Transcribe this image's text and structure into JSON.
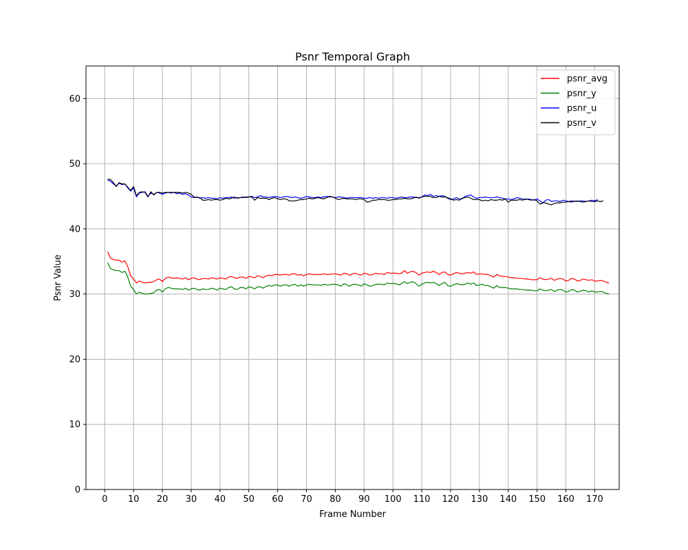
{
  "chart_data": {
    "type": "line",
    "title": "Psnr Temporal Graph",
    "xlabel": "Frame Number",
    "ylabel": "Psnr Value",
    "xlim": [
      -6.5,
      178.5
    ],
    "ylim": [
      0,
      65
    ],
    "xticks": [
      "0",
      "10",
      "20",
      "30",
      "40",
      "50",
      "60",
      "70",
      "80",
      "90",
      "100",
      "110",
      "120",
      "130",
      "140",
      "150",
      "160",
      "170"
    ],
    "yticks": [
      "0",
      "10",
      "20",
      "30",
      "40",
      "50",
      "60"
    ],
    "grid": true,
    "legend_position": "top-right",
    "x_start": 1,
    "series": [
      {
        "name": "psnr_avg",
        "color": "#ff0000",
        "values": [
          36.5,
          35.5,
          35.3,
          35.2,
          35.2,
          34.9,
          35.1,
          34.2,
          32.8,
          32.3,
          31.7,
          32.0,
          31.8,
          31.7,
          31.8,
          31.8,
          31.9,
          32.2,
          32.3,
          31.9,
          32.4,
          32.6,
          32.5,
          32.4,
          32.5,
          32.4,
          32.3,
          32.5,
          32.2,
          32.4,
          32.5,
          32.3,
          32.2,
          32.4,
          32.4,
          32.3,
          32.5,
          32.4,
          32.3,
          32.5,
          32.4,
          32.3,
          32.6,
          32.7,
          32.5,
          32.4,
          32.6,
          32.6,
          32.4,
          32.7,
          32.6,
          32.5,
          32.8,
          32.7,
          32.5,
          32.8,
          32.9,
          32.8,
          33.0,
          33.0,
          32.9,
          33.0,
          33.0,
          32.9,
          33.1,
          33.1,
          32.9,
          33.0,
          32.8,
          33.0,
          33.1,
          33.0,
          33.0,
          33.0,
          33.0,
          33.1,
          33.0,
          33.0,
          33.1,
          33.1,
          33.0,
          32.9,
          33.2,
          33.1,
          32.9,
          33.1,
          33.2,
          33.0,
          32.9,
          33.2,
          33.1,
          32.9,
          33.0,
          33.2,
          33.1,
          33.1,
          33.0,
          33.3,
          33.2,
          33.2,
          33.2,
          33.1,
          33.2,
          33.6,
          33.2,
          33.4,
          33.5,
          33.3,
          32.9,
          33.2,
          33.3,
          33.4,
          33.3,
          33.5,
          33.3,
          33.0,
          33.3,
          33.4,
          33.0,
          32.9,
          33.1,
          33.3,
          33.2,
          33.1,
          33.2,
          33.3,
          33.2,
          33.4,
          33.0,
          33.1,
          33.1,
          33.0,
          33.0,
          32.8,
          32.6,
          33.0,
          32.8,
          32.7,
          32.7,
          32.6,
          32.5,
          32.5,
          32.4,
          32.4,
          32.4,
          32.3,
          32.3,
          32.2,
          32.2,
          32.2,
          32.5,
          32.3,
          32.2,
          32.3,
          32.4,
          32.1,
          32.3,
          32.4,
          32.3,
          32.0,
          32.1,
          32.4,
          32.3,
          32.0,
          32.1,
          32.3,
          32.2,
          32.1,
          32.2,
          32.0,
          32.0,
          32.1,
          32.0,
          31.8,
          31.7
        ]
      },
      {
        "name": "psnr_y",
        "color": "#008000",
        "values": [
          34.8,
          33.9,
          33.7,
          33.6,
          33.6,
          33.3,
          33.5,
          32.6,
          31.2,
          30.7,
          30.0,
          30.3,
          30.1,
          30.0,
          30.0,
          30.1,
          30.2,
          30.6,
          30.7,
          30.3,
          30.8,
          31.0,
          30.9,
          30.8,
          30.8,
          30.8,
          30.7,
          30.9,
          30.6,
          30.8,
          30.9,
          30.7,
          30.6,
          30.8,
          30.7,
          30.7,
          30.9,
          30.8,
          30.6,
          30.9,
          30.8,
          30.7,
          31.0,
          31.1,
          30.8,
          30.7,
          31.0,
          31.0,
          30.8,
          31.1,
          31.0,
          30.8,
          31.1,
          31.1,
          30.9,
          31.2,
          31.3,
          31.2,
          31.4,
          31.4,
          31.2,
          31.4,
          31.4,
          31.2,
          31.4,
          31.5,
          31.2,
          31.4,
          31.2,
          31.4,
          31.5,
          31.4,
          31.4,
          31.4,
          31.3,
          31.5,
          31.4,
          31.4,
          31.5,
          31.5,
          31.4,
          31.2,
          31.6,
          31.4,
          31.2,
          31.5,
          31.5,
          31.4,
          31.2,
          31.6,
          31.4,
          31.2,
          31.3,
          31.5,
          31.5,
          31.5,
          31.4,
          31.7,
          31.6,
          31.6,
          31.6,
          31.4,
          31.6,
          31.9,
          31.6,
          31.8,
          31.9,
          31.6,
          31.2,
          31.5,
          31.7,
          31.8,
          31.7,
          31.8,
          31.6,
          31.3,
          31.6,
          31.8,
          31.3,
          31.2,
          31.4,
          31.6,
          31.5,
          31.4,
          31.5,
          31.7,
          31.5,
          31.7,
          31.3,
          31.4,
          31.5,
          31.3,
          31.3,
          31.1,
          30.9,
          31.3,
          31.0,
          31.0,
          31.0,
          30.9,
          30.8,
          30.8,
          30.8,
          30.7,
          30.7,
          30.6,
          30.6,
          30.6,
          30.5,
          30.5,
          30.8,
          30.6,
          30.5,
          30.6,
          30.7,
          30.4,
          30.6,
          30.7,
          30.6,
          30.3,
          30.4,
          30.7,
          30.6,
          30.3,
          30.4,
          30.6,
          30.5,
          30.3,
          30.5,
          30.3,
          30.3,
          30.4,
          30.3,
          30.1,
          30.0
        ]
      },
      {
        "name": "psnr_u",
        "color": "#0000ff",
        "values": [
          47.5,
          47.3,
          46.9,
          46.6,
          47.0,
          46.8,
          46.9,
          46.3,
          45.8,
          46.3,
          44.9,
          45.5,
          45.6,
          45.7,
          45.0,
          45.5,
          45.3,
          45.6,
          45.5,
          45.3,
          45.5,
          45.6,
          45.5,
          45.6,
          45.4,
          45.5,
          45.3,
          45.4,
          45.2,
          44.9,
          44.8,
          44.9,
          44.7,
          44.8,
          44.7,
          44.8,
          44.7,
          44.7,
          44.6,
          44.8,
          44.7,
          44.8,
          44.8,
          44.9,
          44.7,
          44.8,
          44.8,
          44.9,
          44.8,
          44.9,
          45.0,
          44.8,
          44.9,
          45.1,
          44.9,
          44.9,
          44.8,
          44.9,
          45.0,
          44.9,
          44.8,
          44.9,
          45.0,
          44.9,
          44.8,
          44.9,
          44.8,
          44.7,
          44.8,
          45.0,
          44.9,
          44.8,
          44.8,
          44.9,
          44.8,
          44.9,
          45.0,
          44.9,
          44.9,
          44.8,
          44.9,
          44.9,
          44.8,
          44.7,
          44.8,
          44.8,
          44.8,
          44.8,
          44.8,
          44.7,
          44.7,
          44.8,
          44.7,
          44.8,
          44.7,
          44.8,
          44.8,
          44.7,
          44.8,
          44.8,
          44.7,
          44.8,
          44.9,
          44.8,
          44.8,
          44.9,
          44.9,
          44.8,
          44.8,
          44.9,
          45.2,
          45.1,
          45.3,
          45.0,
          45.1,
          45.0,
          45.1,
          45.0,
          44.7,
          44.5,
          44.6,
          44.8,
          44.6,
          44.6,
          45.0,
          45.1,
          45.2,
          44.9,
          44.7,
          44.8,
          44.8,
          44.9,
          44.8,
          44.8,
          44.8,
          44.9,
          44.8,
          44.7,
          44.6,
          44.6,
          44.5,
          44.6,
          44.8,
          44.7,
          44.6,
          44.5,
          44.6,
          44.5,
          44.4,
          44.6,
          44.3,
          44.0,
          44.4,
          44.5,
          44.2,
          44.3,
          44.3,
          44.2,
          44.4,
          44.3,
          44.2,
          44.1,
          44.3,
          44.2,
          44.3,
          44.3,
          44.2,
          44.3,
          44.4,
          44.3,
          44.5
        ]
      },
      {
        "name": "psnr_v",
        "color": "#000000",
        "values": [
          47.6,
          47.6,
          47.1,
          46.5,
          47.1,
          46.9,
          46.9,
          46.4,
          45.9,
          46.5,
          45.1,
          45.6,
          45.7,
          45.6,
          44.9,
          45.7,
          45.2,
          45.6,
          45.6,
          45.5,
          45.6,
          45.6,
          45.6,
          45.6,
          45.6,
          45.6,
          45.5,
          45.6,
          45.5,
          45.3,
          44.9,
          44.8,
          44.8,
          44.4,
          44.4,
          44.5,
          44.4,
          44.5,
          44.5,
          44.4,
          44.5,
          44.7,
          44.6,
          44.7,
          44.9,
          44.7,
          44.8,
          44.8,
          44.9,
          44.9,
          44.9,
          44.4,
          44.8,
          44.7,
          44.7,
          44.7,
          44.5,
          44.7,
          44.8,
          44.6,
          44.5,
          44.6,
          44.6,
          44.3,
          44.3,
          44.3,
          44.4,
          44.5,
          44.5,
          44.6,
          44.7,
          44.6,
          44.7,
          44.8,
          44.7,
          44.6,
          44.8,
          45.0,
          44.9,
          44.7,
          44.5,
          44.6,
          44.7,
          44.6,
          44.6,
          44.6,
          44.5,
          44.6,
          44.6,
          44.5,
          44.1,
          44.2,
          44.4,
          44.4,
          44.5,
          44.5,
          44.5,
          44.4,
          44.4,
          44.5,
          44.5,
          44.6,
          44.6,
          44.7,
          44.6,
          44.6,
          44.7,
          44.9,
          44.7,
          44.9,
          45.0,
          45.0,
          45.0,
          44.8,
          44.8,
          45.0,
          44.9,
          44.9,
          44.8,
          44.6,
          44.4,
          44.5,
          44.4,
          44.7,
          44.8,
          44.9,
          44.7,
          44.5,
          44.5,
          44.5,
          44.3,
          44.4,
          44.3,
          44.5,
          44.4,
          44.4,
          44.5,
          44.4,
          44.6,
          44.1,
          44.4,
          44.4,
          44.4,
          44.5,
          44.4,
          44.6,
          44.5,
          44.4,
          44.5,
          44.3,
          43.8,
          44.0,
          44.0,
          43.8,
          43.7,
          43.9,
          44.0,
          44.0,
          44.1,
          44.1,
          44.2,
          44.3,
          44.2,
          44.3,
          44.2,
          44.1,
          44.2,
          44.3,
          44.2,
          44.2,
          44.3,
          44.2,
          44.3
        ]
      }
    ]
  }
}
